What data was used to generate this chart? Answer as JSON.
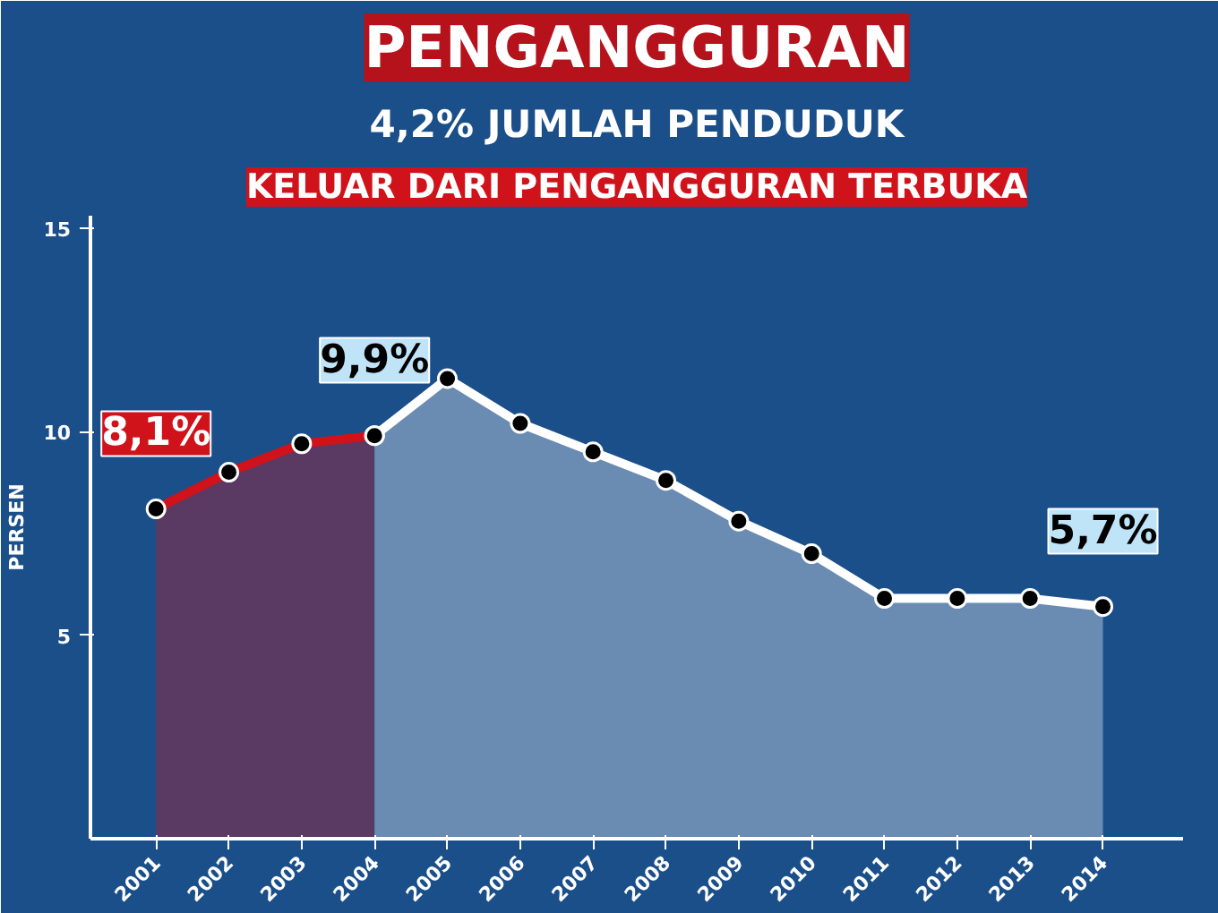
{
  "chart_data": {
    "type": "area",
    "title": "PENGANGGURAN",
    "subtitle": "4,2% JUMLAH PENDUDUK",
    "annotations": [
      "KELUAR DARI PENGANGGURAN TERBUKA"
    ],
    "ylabel": "PERSEN",
    "categories": [
      "2001",
      "2002",
      "2003",
      "2004",
      "2005",
      "2006",
      "2007",
      "2008",
      "2009",
      "2010",
      "2011",
      "2012",
      "2013",
      "2014"
    ],
    "series": [
      {
        "color": "#d0121b",
        "values": [
          8.1,
          9.0,
          9.7,
          9.9,
          null,
          null,
          null,
          null,
          null,
          null,
          null,
          null,
          null,
          null
        ],
        "value_labels": [
          "8,1%",
          null,
          null,
          null,
          null,
          null,
          null,
          null,
          null,
          null,
          null,
          null,
          null,
          null
        ]
      },
      {
        "color": "#ffffff",
        "values": [
          null,
          null,
          null,
          9.9,
          11.3,
          10.2,
          9.5,
          8.8,
          7.8,
          7.0,
          5.9,
          5.9,
          5.9,
          5.7
        ],
        "value_labels": [
          null,
          null,
          null,
          "9,9%",
          null,
          null,
          null,
          null,
          null,
          null,
          null,
          null,
          null,
          "5,7%"
        ]
      }
    ],
    "ylim": [
      0,
      15.3
    ],
    "yticks": [
      5,
      10,
      15
    ],
    "grid": false,
    "marker": "circle"
  }
}
